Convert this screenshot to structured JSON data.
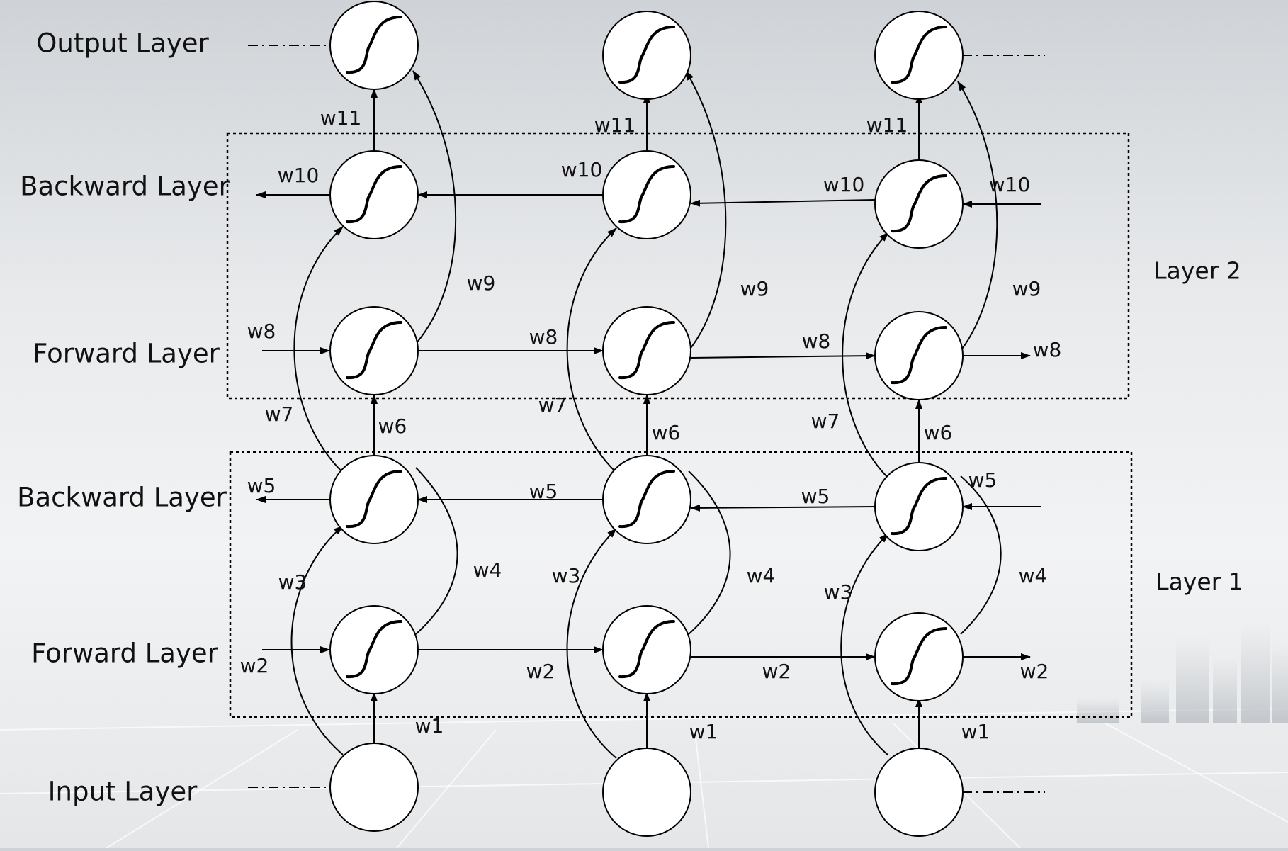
{
  "diagram": {
    "type": "bidirectional-rnn",
    "row_labels": {
      "output": "Output Layer",
      "backward2": "Backward Layer",
      "forward2": "Forward Layer",
      "backward1": "Backward Layer",
      "forward1": "Forward Layer",
      "input": "Input Layer"
    },
    "group_labels": {
      "layer2": "Layer 2",
      "layer1": "Layer 1"
    },
    "weights": {
      "w1": "w1",
      "w2": "w2",
      "w3": "w3",
      "w4": "w4",
      "w5": "w5",
      "w6": "w6",
      "w7": "w7",
      "w8": "w8",
      "w9": "w9",
      "w10": "w10",
      "w11": "w11"
    },
    "node_icon": "sigmoid-icon",
    "line_color": "#000000",
    "background_color": "#e9ebed"
  }
}
